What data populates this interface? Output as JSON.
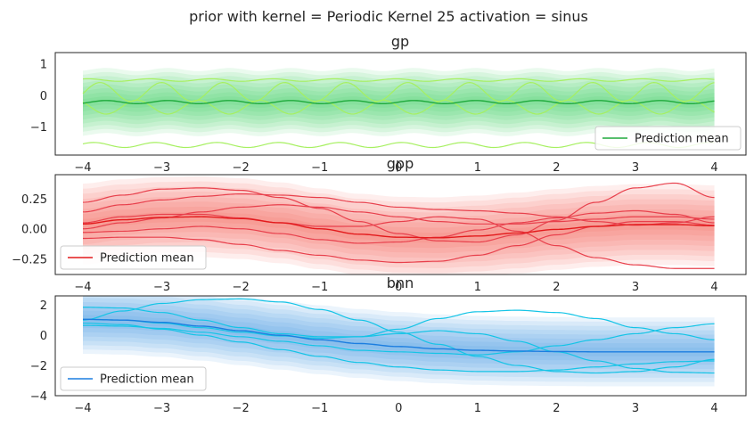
{
  "figure": {
    "suptitle": "prior with kernel = Periodic Kernel 25 activation = sinus"
  },
  "chart_data": [
    {
      "type": "line",
      "title": "gp",
      "xlim": [
        -4.35,
        4.4
      ],
      "ylim": [
        -1.9,
        1.35
      ],
      "xticks": [
        -4,
        -3,
        -2,
        -1,
        0,
        1,
        2,
        3,
        4
      ],
      "yticks": [
        1,
        0,
        -1
      ],
      "ytick_labels": [
        "1",
        "0",
        "−1"
      ],
      "legend": {
        "label": "Prediction mean",
        "placement": "lower-right"
      },
      "mean_color": "#1faa3c",
      "band_color": "#2ecc55",
      "sample_color": "#a6f060",
      "mean": {
        "x": [
          -4,
          -3,
          -2,
          -1,
          0,
          1,
          2,
          3,
          4
        ],
        "y": [
          -0.22,
          -0.22,
          -0.22,
          -0.22,
          -0.22,
          -0.22,
          -0.22,
          -0.22,
          -0.22
        ]
      },
      "mean_ripple": {
        "amplitude": 0.05,
        "period": 0.78
      },
      "std": 0.43,
      "samples": [
        {
          "base": 0.48,
          "amplitude": 0.04,
          "period": 0.78,
          "phase": 0.3
        },
        {
          "base": 0.1,
          "amplitude": 0.3,
          "period": 0.78,
          "phase": 0.1
        },
        {
          "base": -0.38,
          "amplitude": 0.22,
          "period": 0.78,
          "phase": 0.5
        },
        {
          "base": -1.58,
          "amplitude": 0.08,
          "period": 0.78,
          "phase": 0.2
        }
      ]
    },
    {
      "type": "line",
      "title": "gpp",
      "xlim": [
        -4.35,
        4.4
      ],
      "ylim": [
        -0.38,
        0.45
      ],
      "xticks": [
        -4,
        -3,
        -2,
        -1,
        0,
        1,
        2,
        3,
        4
      ],
      "yticks": [
        0.25,
        0,
        -0.25
      ],
      "ytick_labels": [
        "0.25",
        "0.00",
        "−0.25"
      ],
      "legend": {
        "label": "Prediction mean",
        "placement": "lower-left"
      },
      "mean_color": "#e31a1c",
      "band_color": "#f25a4a",
      "sample_color": "#e8404c",
      "mean": {
        "x": [
          -4,
          -3.5,
          -3,
          -2.5,
          -2,
          -1.5,
          -1,
          -0.5,
          0,
          0.5,
          1,
          1.5,
          2,
          2.5,
          3,
          3.5,
          4
        ],
        "y": [
          0.04,
          0.075,
          0.095,
          0.1,
          0.085,
          0.05,
          0.0,
          -0.045,
          -0.07,
          -0.075,
          -0.06,
          -0.035,
          -0.005,
          0.02,
          0.035,
          0.035,
          0.025
        ]
      },
      "std": 0.14,
      "samples": [
        {
          "x": [
            -4,
            -3.5,
            -3,
            -2.5,
            -2,
            -1.5,
            -1,
            -0.5,
            0,
            0.5,
            1,
            1.5,
            2,
            2.5,
            3,
            3.5,
            4
          ],
          "y": [
            0.22,
            0.28,
            0.33,
            0.34,
            0.32,
            0.26,
            0.17,
            0.06,
            -0.04,
            -0.1,
            -0.11,
            -0.05,
            0.07,
            0.22,
            0.34,
            0.38,
            0.26
          ]
        },
        {
          "x": [
            -4,
            -3.5,
            -3,
            -2.5,
            -2,
            -1.5,
            -1,
            -0.5,
            0,
            0.5,
            1,
            1.5,
            2,
            2.5,
            3,
            3.5,
            4
          ],
          "y": [
            0.14,
            0.2,
            0.24,
            0.27,
            0.29,
            0.28,
            0.26,
            0.22,
            0.18,
            0.16,
            0.15,
            0.13,
            0.1,
            0.06,
            0.03,
            0.05,
            0.1
          ]
        },
        {
          "x": [
            -4,
            -3.5,
            -3,
            -2.5,
            -2,
            -1.5,
            -1,
            -0.5,
            0,
            0.5,
            1,
            1.5,
            2,
            2.5,
            3,
            3.5,
            4
          ],
          "y": [
            0.05,
            0.1,
            0.12,
            0.12,
            0.09,
            0.05,
            0.02,
            0.02,
            0.06,
            0.1,
            0.08,
            -0.02,
            -0.14,
            -0.24,
            -0.3,
            -0.33,
            -0.33
          ]
        },
        {
          "x": [
            -4,
            -3.5,
            -3,
            -2.5,
            -2,
            -1.5,
            -1,
            -0.5,
            0,
            0.5,
            1,
            1.5,
            2,
            2.5,
            3,
            3.5,
            4
          ],
          "y": [
            -0.03,
            -0.02,
            0.0,
            0.02,
            0.0,
            -0.04,
            -0.09,
            -0.12,
            -0.11,
            -0.07,
            -0.01,
            0.05,
            0.09,
            0.13,
            0.15,
            0.12,
            0.05
          ]
        },
        {
          "x": [
            -4,
            -3.5,
            -3,
            -2.5,
            -2,
            -1.5,
            -1,
            -0.5,
            0,
            0.5,
            1,
            1.5,
            2,
            2.5,
            3,
            3.5,
            4
          ],
          "y": [
            -0.08,
            -0.07,
            -0.07,
            -0.09,
            -0.13,
            -0.18,
            -0.22,
            -0.26,
            -0.28,
            -0.27,
            -0.22,
            -0.14,
            -0.05,
            0.02,
            0.06,
            0.06,
            0.03
          ]
        },
        {
          "x": [
            -4,
            -3.5,
            -3,
            -2.5,
            -2,
            -1.5,
            -1,
            -0.5,
            0,
            0.5,
            1,
            1.5,
            2,
            2.5,
            3,
            3.5,
            4
          ],
          "y": [
            0.0,
            0.05,
            0.09,
            0.14,
            0.18,
            0.2,
            0.18,
            0.14,
            0.1,
            0.06,
            0.04,
            0.04,
            0.06,
            0.08,
            0.1,
            0.1,
            0.08
          ]
        }
      ]
    },
    {
      "type": "line",
      "title": "bnn",
      "xlim": [
        -4.35,
        4.4
      ],
      "ylim": [
        -4.0,
        2.6
      ],
      "xticks": [
        -4,
        -3,
        -2,
        -1,
        0,
        1,
        2,
        3,
        4
      ],
      "yticks": [
        2,
        0,
        -2,
        -4
      ],
      "ytick_labels": [
        "2",
        "0",
        "−2",
        "−4"
      ],
      "legend": {
        "label": "Prediction mean",
        "placement": "lower-left"
      },
      "mean_color": "#1c7ee0",
      "band_color": "#3a93e6",
      "sample_color": "#14c4e6",
      "mean": {
        "x": [
          -4,
          -3.5,
          -3,
          -2.5,
          -2,
          -1.5,
          -1,
          -0.5,
          0,
          0.5,
          1,
          1.5,
          2,
          2.5,
          3,
          3.5,
          4
        ],
        "y": [
          1.05,
          1.0,
          0.85,
          0.6,
          0.3,
          0.0,
          -0.3,
          -0.55,
          -0.75,
          -0.9,
          -1.0,
          -1.05,
          -1.08,
          -1.1,
          -1.1,
          -1.1,
          -1.1
        ]
      },
      "std": 0.95,
      "samples": [
        {
          "x": [
            -4,
            -3.5,
            -3,
            -2.5,
            -2,
            -1.5,
            -1,
            -0.5,
            0,
            0.5,
            1,
            1.5,
            2,
            2.5,
            3,
            3.5,
            4
          ],
          "y": [
            1.0,
            1.6,
            2.1,
            2.35,
            2.4,
            2.2,
            1.7,
            1.0,
            0.2,
            -0.6,
            -1.4,
            -2.0,
            -2.4,
            -2.5,
            -2.4,
            -2.1,
            -1.6
          ]
        },
        {
          "x": [
            -4,
            -3.5,
            -3,
            -2.5,
            -2,
            -1.5,
            -1,
            -0.5,
            0,
            0.5,
            1,
            1.5,
            2,
            2.5,
            3,
            3.5,
            4
          ],
          "y": [
            1.85,
            1.8,
            1.5,
            1.0,
            0.5,
            0.1,
            -0.1,
            -0.1,
            0.1,
            0.3,
            0.1,
            -0.4,
            -1.1,
            -1.7,
            -2.2,
            -2.45,
            -2.5
          ]
        },
        {
          "x": [
            -4,
            -3.5,
            -3,
            -2.5,
            -2,
            -1.5,
            -1,
            -0.5,
            0,
            0.5,
            1,
            1.5,
            2,
            2.5,
            3,
            3.5,
            4
          ],
          "y": [
            1.05,
            1.0,
            0.8,
            0.5,
            0.2,
            -0.05,
            -0.2,
            -0.1,
            0.4,
            1.1,
            1.55,
            1.65,
            1.5,
            1.1,
            0.5,
            0.1,
            -0.3
          ]
        },
        {
          "x": [
            -4,
            -3.5,
            -3,
            -2.5,
            -2,
            -1.5,
            -1,
            -0.5,
            0,
            0.5,
            1,
            1.5,
            2,
            2.5,
            3,
            3.5,
            4
          ],
          "y": [
            0.65,
            0.6,
            0.45,
            0.2,
            -0.1,
            -0.4,
            -0.7,
            -1.0,
            -1.1,
            -1.2,
            -1.3,
            -1.1,
            -0.7,
            -0.3,
            0.1,
            0.5,
            0.75
          ]
        },
        {
          "x": [
            -4,
            -3.5,
            -3,
            -2.5,
            -2,
            -1.5,
            -1,
            -0.5,
            0,
            0.5,
            1,
            1.5,
            2,
            2.5,
            3,
            3.5,
            4
          ],
          "y": [
            0.8,
            0.7,
            0.4,
            0.0,
            -0.45,
            -0.95,
            -1.4,
            -1.8,
            -2.1,
            -2.3,
            -2.4,
            -2.4,
            -2.3,
            -2.1,
            -1.9,
            -1.75,
            -1.7
          ]
        }
      ]
    }
  ]
}
